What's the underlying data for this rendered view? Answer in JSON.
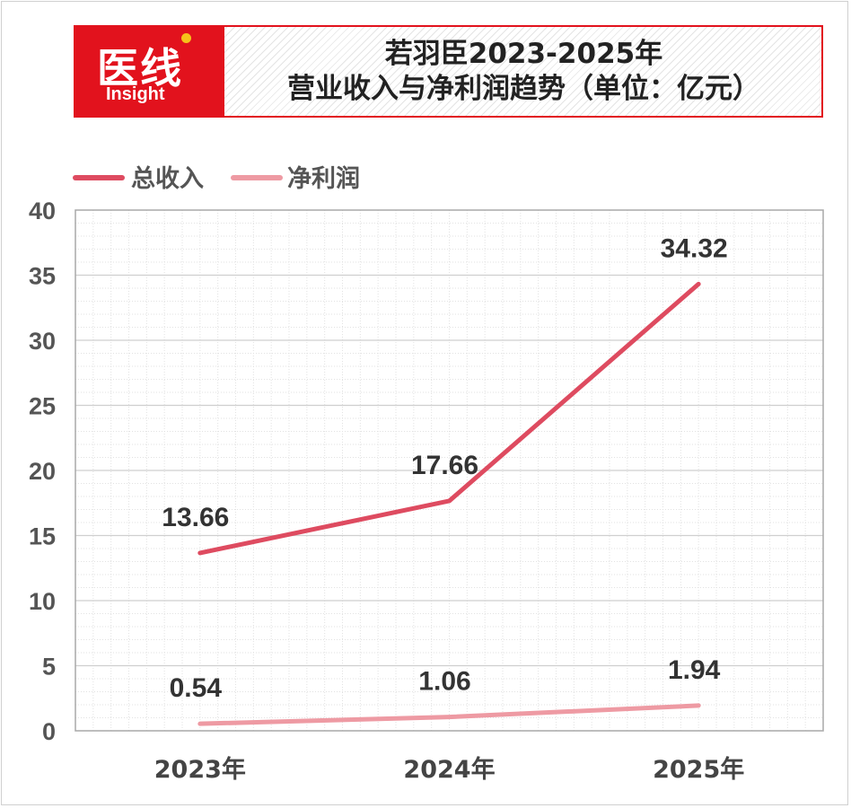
{
  "logo": {
    "main": "医线",
    "sub": "Insight"
  },
  "header": {
    "title_line1": "若羽臣2023-2025年",
    "title_line2": "营业收入与净利润趋势（单位：亿元）"
  },
  "colors": {
    "brand": "#e2121d",
    "revenue": "#de4b60",
    "profit": "#ee9aa3"
  },
  "chart_data": {
    "type": "line",
    "categories": [
      "2023年",
      "2024年",
      "2025年"
    ],
    "series": [
      {
        "name": "总收入",
        "values": [
          13.66,
          17.66,
          34.32
        ],
        "labels": [
          "13.66",
          "17.66",
          "34.32"
        ]
      },
      {
        "name": "净利润",
        "values": [
          0.54,
          1.06,
          1.94
        ],
        "labels": [
          "0.54",
          "1.06",
          "1.94"
        ]
      }
    ],
    "ylim": [
      0,
      40
    ],
    "yticks": [
      "0",
      "5",
      "10",
      "15",
      "20",
      "25",
      "30",
      "35",
      "40"
    ],
    "grid": true,
    "legend": "top-left",
    "title": "若羽臣2023-2025年营业收入与净利润趋势（单位：亿元）",
    "xlabel": "",
    "ylabel": ""
  }
}
